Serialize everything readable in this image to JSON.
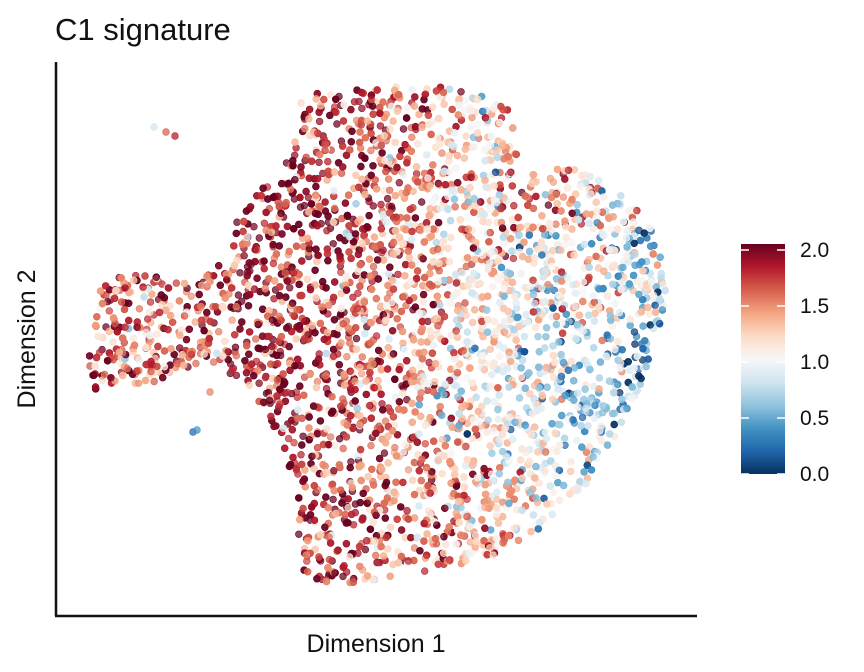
{
  "chart_data": {
    "type": "scatter",
    "title": "C1 signature",
    "xlabel": "Dimension 1",
    "ylabel": "Dimension 2",
    "colorbar": {
      "min": 0.0,
      "max": 2.0,
      "ticks": [
        "2.0",
        "1.5",
        "1.0",
        "0.5",
        "0.0"
      ],
      "colors": [
        "#053061",
        "#2166ac",
        "#4393c3",
        "#92c5de",
        "#d1e5f0",
        "#f7f7f7",
        "#fddbc7",
        "#f4a582",
        "#d6604d",
        "#b2182b",
        "#67001f"
      ]
    },
    "grid": false,
    "legend_position": "right",
    "point_count_note": "",
    "series": []
  }
}
